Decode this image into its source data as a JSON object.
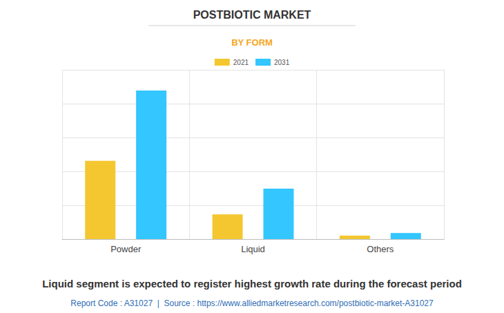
{
  "chart_data": {
    "type": "bar",
    "title": "POSTBIOTIC MARKET",
    "subtitle": "BY FORM",
    "categories": [
      "Powder",
      "Liquid",
      "Others"
    ],
    "series": [
      {
        "name": "2021",
        "color": "#f4c730",
        "values": [
          2.31,
          0.73,
          0.1
        ]
      },
      {
        "name": "2031",
        "color": "#33c6ff",
        "values": [
          4.39,
          1.49,
          0.18
        ]
      }
    ],
    "ylim": [
      0,
      5
    ],
    "yticks": [
      0,
      1,
      2,
      3,
      4,
      5
    ],
    "grid": true,
    "legend": "top",
    "tick_labels": "x",
    "annotations": [
      "Liquid segment is expected to register highest growth rate during the forecast period",
      "Report Code : A31027  |  Source : https://www.alliedmarketresearch.com/postbiotic-market-A31027"
    ]
  }
}
